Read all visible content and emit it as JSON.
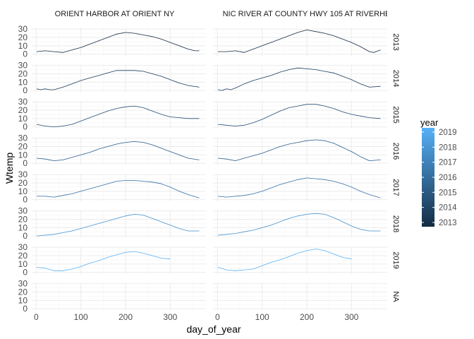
{
  "chart_data": {
    "type": "line",
    "xlabel": "day_of_year",
    "ylabel": "Wtemp",
    "xlim": [
      -10,
      380
    ],
    "ylim": [
      -2,
      31
    ],
    "xticks": [
      0,
      100,
      200,
      300
    ],
    "yticks": [
      0,
      10,
      20,
      30
    ],
    "y_minor_ticks": [
      5,
      15,
      25
    ],
    "x_minor_ticks": [
      50,
      150,
      250,
      350
    ],
    "grid": true,
    "columns": [
      "ORIENT HARBOR AT ORIENT NY",
      "NIC RIVER AT COUNTY HWY 105 AT RIVERHE"
    ],
    "rows": [
      "2013",
      "2014",
      "2015",
      "2016",
      "2017",
      "2018",
      "2019",
      "NA"
    ],
    "legend": {
      "title": "year",
      "placement": "right",
      "labels": [
        "2019",
        "2018",
        "2017",
        "2016",
        "2015",
        "2014",
        "2013"
      ],
      "color_low": "#132B43",
      "color_high": "#56B1F7",
      "range": [
        2013,
        2019
      ]
    },
    "series_color": {
      "2013": "#132B43",
      "2014": "#1A3A5A",
      "2015": "#224B72",
      "2016": "#2A5C8C",
      "2017": "#346FA8",
      "2018": "#4391CE",
      "2019": "#56B1F7"
    },
    "panels": [
      {
        "column": 0,
        "row": "2013",
        "x": [
          1,
          20,
          40,
          60,
          80,
          100,
          120,
          140,
          160,
          180,
          200,
          220,
          240,
          260,
          280,
          300,
          320,
          340,
          355,
          365
        ],
        "y": [
          3,
          4,
          3,
          2,
          5,
          8,
          12,
          16,
          20,
          24,
          26,
          25,
          23,
          21,
          18,
          14,
          10,
          6,
          4,
          4
        ]
      },
      {
        "column": 1,
        "row": "2013",
        "x": [
          1,
          20,
          40,
          60,
          80,
          100,
          120,
          140,
          160,
          180,
          200,
          220,
          240,
          260,
          280,
          300,
          320,
          340,
          350,
          365
        ],
        "y": [
          3,
          3,
          4,
          2,
          6,
          10,
          14,
          18,
          22,
          26,
          29,
          27,
          25,
          22,
          18,
          14,
          9,
          3,
          2,
          5
        ]
      },
      {
        "column": 0,
        "row": "2014",
        "x": [
          1,
          10,
          20,
          30,
          40,
          60,
          80,
          100,
          120,
          140,
          160,
          180,
          200,
          220,
          240,
          260,
          280,
          300,
          320,
          340,
          365
        ],
        "y": [
          2,
          1,
          2,
          1,
          1,
          4,
          8,
          12,
          15,
          18,
          21,
          24,
          24,
          24,
          23,
          20,
          17,
          13,
          9,
          6,
          4
        ]
      },
      {
        "column": 1,
        "row": "2014",
        "x": [
          1,
          10,
          20,
          30,
          40,
          60,
          80,
          100,
          120,
          140,
          160,
          180,
          200,
          220,
          240,
          260,
          280,
          300,
          320,
          340,
          365
        ],
        "y": [
          1,
          0,
          2,
          1,
          3,
          8,
          12,
          15,
          18,
          22,
          25,
          27,
          26,
          25,
          23,
          21,
          17,
          13,
          8,
          4,
          5
        ]
      },
      {
        "column": 0,
        "row": "2015",
        "x": [
          1,
          20,
          40,
          60,
          80,
          100,
          120,
          140,
          160,
          180,
          200,
          220,
          240,
          260,
          280,
          300,
          320,
          340,
          365
        ],
        "y": [
          3,
          1,
          0,
          1,
          3,
          7,
          11,
          15,
          19,
          22,
          24,
          25,
          23,
          19,
          15,
          12,
          11,
          10,
          10
        ]
      },
      {
        "column": 1,
        "row": "2015",
        "x": [
          1,
          20,
          40,
          60,
          80,
          100,
          120,
          140,
          160,
          180,
          200,
          220,
          240,
          260,
          280,
          300,
          320,
          340,
          365
        ],
        "y": [
          3,
          2,
          1,
          2,
          5,
          9,
          14,
          19,
          23,
          25,
          27,
          27,
          25,
          22,
          18,
          15,
          13,
          11,
          10
        ]
      },
      {
        "column": 0,
        "row": "2016",
        "x": [
          1,
          20,
          40,
          60,
          80,
          100,
          120,
          140,
          160,
          180,
          200,
          220,
          240,
          260,
          280,
          300,
          320,
          340,
          365
        ],
        "y": [
          6,
          5,
          3,
          4,
          7,
          10,
          13,
          17,
          20,
          23,
          25,
          26,
          25,
          22,
          18,
          14,
          10,
          6,
          4
        ]
      },
      {
        "column": 1,
        "row": "2016",
        "x": [
          1,
          20,
          40,
          60,
          80,
          100,
          120,
          140,
          160,
          180,
          200,
          220,
          240,
          260,
          280,
          300,
          320,
          340,
          365
        ],
        "y": [
          6,
          5,
          3,
          6,
          9,
          12,
          16,
          20,
          23,
          25,
          27,
          28,
          27,
          24,
          19,
          14,
          8,
          3,
          4
        ]
      },
      {
        "column": 0,
        "row": "2017",
        "x": [
          1,
          20,
          40,
          60,
          80,
          100,
          120,
          140,
          160,
          180,
          200,
          220,
          240,
          260,
          280,
          300,
          320,
          340,
          365
        ],
        "y": [
          4,
          4,
          3,
          5,
          7,
          10,
          13,
          16,
          19,
          22,
          23,
          23,
          22,
          21,
          19,
          15,
          10,
          6,
          2
        ]
      },
      {
        "column": 1,
        "row": "2017",
        "x": [
          1,
          20,
          40,
          60,
          80,
          100,
          120,
          140,
          160,
          180,
          200,
          220,
          240,
          260,
          280,
          300,
          320,
          340,
          365
        ],
        "y": [
          4,
          3,
          4,
          5,
          7,
          10,
          14,
          18,
          21,
          24,
          26,
          25,
          24,
          22,
          19,
          15,
          10,
          6,
          2
        ]
      },
      {
        "column": 0,
        "row": "2018",
        "x": [
          1,
          20,
          40,
          60,
          80,
          100,
          120,
          140,
          160,
          180,
          200,
          220,
          240,
          260,
          280,
          300,
          320,
          340,
          365
        ],
        "y": [
          0,
          1,
          2,
          4,
          6,
          9,
          12,
          15,
          18,
          21,
          24,
          26,
          25,
          21,
          17,
          13,
          9,
          6,
          6
        ]
      },
      {
        "column": 1,
        "row": "2018",
        "x": [
          1,
          20,
          40,
          60,
          80,
          100,
          120,
          140,
          160,
          180,
          200,
          220,
          240,
          260,
          280,
          300,
          320,
          340,
          365
        ],
        "y": [
          1,
          2,
          3,
          5,
          7,
          10,
          13,
          17,
          21,
          24,
          26,
          27,
          26,
          22,
          17,
          12,
          8,
          6,
          6
        ]
      },
      {
        "column": 0,
        "row": "2019",
        "x": [
          1,
          20,
          40,
          60,
          80,
          100,
          120,
          140,
          160,
          180,
          200,
          220,
          240,
          260,
          280,
          300
        ],
        "y": [
          6,
          5,
          2,
          2,
          4,
          7,
          11,
          14,
          18,
          21,
          24,
          25,
          23,
          20,
          17,
          16
        ]
      },
      {
        "column": 1,
        "row": "2019",
        "x": [
          1,
          20,
          40,
          60,
          80,
          100,
          120,
          140,
          160,
          180,
          200,
          220,
          240,
          260,
          280,
          300
        ],
        "y": [
          6,
          3,
          2,
          3,
          4,
          8,
          12,
          15,
          19,
          23,
          26,
          28,
          26,
          22,
          18,
          16
        ]
      }
    ]
  }
}
